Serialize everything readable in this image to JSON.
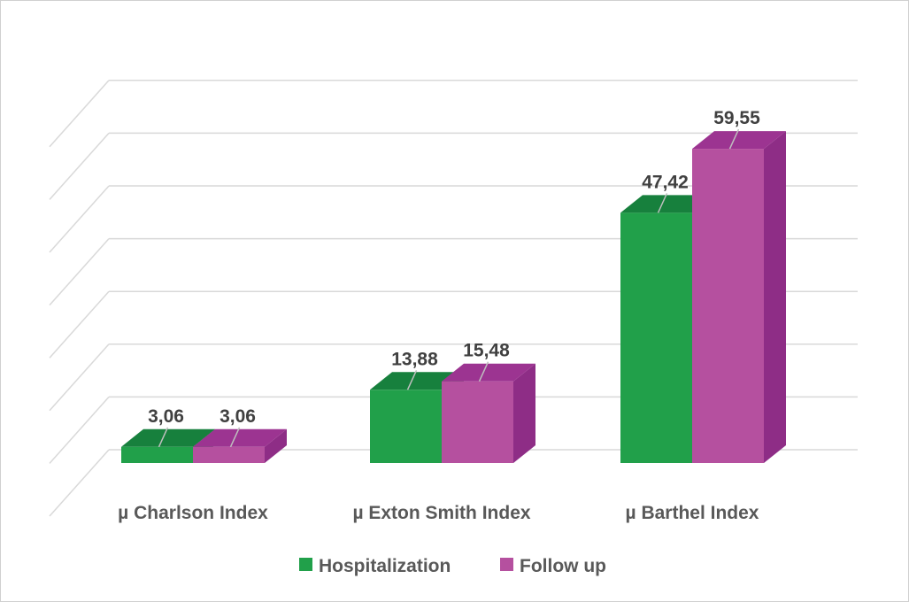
{
  "chart_data": {
    "type": "bar",
    "style": "3d-clustered-column",
    "categories": [
      "µ Charlson Index",
      "µ Exton Smith Index",
      "µ Barthel Index"
    ],
    "series": [
      {
        "name": "Hospitalization",
        "values": [
          3.06,
          13.88,
          47.42
        ],
        "labels": [
          "3,06",
          "13,88",
          "47,42"
        ],
        "color": "#21a04a",
        "side_color": "#15773a",
        "top_color": "#17803d"
      },
      {
        "name": "Follow up",
        "values": [
          3.06,
          15.48,
          59.55
        ],
        "labels": [
          "3,06",
          "15,48",
          "59,55"
        ],
        "color": "#b5509f",
        "side_color": "#8e2d86",
        "top_color": "#9c3491"
      }
    ],
    "ylim": [
      0,
      70
    ],
    "grid": true,
    "legend_position": "bottom"
  }
}
